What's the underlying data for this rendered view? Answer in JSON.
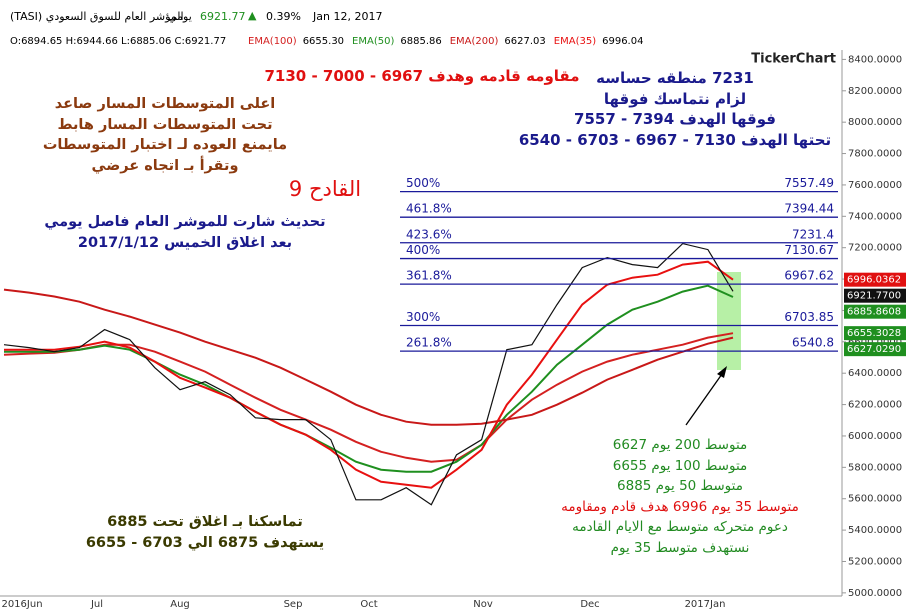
{
  "header": {
    "title": "المؤشر العام للسوق السعودي",
    "symbol": "(TASI)",
    "period": "يومي",
    "last": "6921.77",
    "change": "0.39%",
    "date": "Jan 12, 2017",
    "ohlc": "O:6894.65  H:6944.66  L:6885.06  C:6921.77",
    "legend_values": [
      "6655.30",
      "6885.86",
      "6627.03",
      "6996.04"
    ]
  },
  "logo": "TickerChart",
  "annotations": {
    "resistance": "مقاومه قادمه وهدف 6967 - 7000 - 7130",
    "zone": [
      "7231 منطقه حساسه",
      "لزام نتماسك فوقها",
      "فوقها الهدف 7394 - 7557",
      "تحتها الهدف 7130 - 6967 - 6703 - 6540"
    ],
    "trend": [
      "اعلى المتوسطات المسار صاعد",
      "تحت المتوسطات المسار هابط",
      "مايمنع العوده لـ اختبار المتوسطات",
      "وتقرأ بـ اتجاه عرضي"
    ],
    "episode": "القادح 9",
    "update": [
      "تحديث شارت للموشر العام فاصل يومي",
      "بعد اغلاق الخميس 2017/1/12"
    ],
    "hold": [
      "تماسكنا بـ اغلاق تحت 6885",
      "يستهدف 6875 الي 6703 - 6655"
    ],
    "averages": [
      "متوسط 200 يوم 6627",
      "متوسط 100 يوم 6655",
      "متوسط 50 يوم 6885",
      "متوسط 35 يوم 6996 هدف قادم ومقاومه",
      "دعوم متحركه متوسط مع الايام القادمه",
      "نستهدف متوسط 35 يوم"
    ]
  },
  "chart_data": {
    "type": "line",
    "x_labels": [
      "2016Jun",
      "Jul",
      "Aug",
      "Sep",
      "Oct",
      "Nov",
      "Dec",
      "2017Jan"
    ],
    "ylim": [
      4980,
      8460
    ],
    "yticks": [
      {
        "value": 8400,
        "label": "8400.0000"
      },
      {
        "value": 8200,
        "label": "8200.0000"
      },
      {
        "value": 8000,
        "label": "8000.0000"
      },
      {
        "value": 7800,
        "label": "7800.0000"
      },
      {
        "value": 7600,
        "label": "7600.0000"
      },
      {
        "value": 7400,
        "label": "7400.0000"
      },
      {
        "value": 7200,
        "label": "7200.0000"
      },
      {
        "value": 7000,
        "label": "7000.0000"
      },
      {
        "value": 6800,
        "label": "6800.0000"
      },
      {
        "value": 6600,
        "label": "6600.0000"
      },
      {
        "value": 6400,
        "label": "6400.0000"
      },
      {
        "value": 6200,
        "label": "6200.0000"
      },
      {
        "value": 6000,
        "label": "6000.0000"
      },
      {
        "value": 5800,
        "label": "5800.0000"
      },
      {
        "value": 5600,
        "label": "5600.0000"
      },
      {
        "value": 5400,
        "label": "5400.0000"
      },
      {
        "value": 5200,
        "label": "5200.0000"
      },
      {
        "value": 5000,
        "label": "5000.0000"
      }
    ],
    "series": [
      {
        "color": "#111111",
        "values": [
          6582,
          6563,
          6537,
          6563,
          6678,
          6614,
          6435,
          6295,
          6346,
          6263,
          6116,
          6104,
          6104,
          5976,
          5593,
          5593,
          5670,
          5562,
          5880,
          5976,
          6550,
          6582,
          6837,
          7073,
          7137,
          7092,
          7073,
          7226,
          7188,
          6921.77
        ]
      },
      {
        "name": "EMA(100)",
        "color": "#d42020",
        "values": [
          6518,
          6525,
          6531,
          6550,
          6582,
          6582,
          6537,
          6474,
          6410,
          6327,
          6244,
          6167,
          6104,
          6040,
          5963,
          5899,
          5861,
          5836,
          5848,
          5944,
          6104,
          6231,
          6327,
          6410,
          6474,
          6518,
          6550,
          6582,
          6627,
          6655.3
        ]
      },
      {
        "name": "EMA(50)",
        "color": "#1f8f1f",
        "values": [
          6537,
          6537,
          6537,
          6550,
          6576,
          6550,
          6474,
          6391,
          6327,
          6244,
          6154,
          6072,
          6008,
          5925,
          5836,
          5785,
          5772,
          5772,
          5836,
          5944,
          6135,
          6282,
          6454,
          6582,
          6710,
          6805,
          6856,
          6920,
          6958,
          6885.86
        ]
      },
      {
        "name": "EMA(200)",
        "color": "#c81818",
        "values": [
          6933,
          6914,
          6889,
          6856,
          6805,
          6761,
          6710,
          6659,
          6601,
          6550,
          6499,
          6435,
          6359,
          6282,
          6199,
          6135,
          6091,
          6072,
          6072,
          6078,
          6104,
          6135,
          6199,
          6276,
          6359,
          6422,
          6486,
          6537,
          6588,
          6627.03
        ]
      },
      {
        "name": "EMA(35)",
        "color": "#e81010",
        "values": [
          6550,
          6550,
          6550,
          6569,
          6601,
          6563,
          6474,
          6371,
          6308,
          6244,
          6154,
          6072,
          6008,
          5912,
          5785,
          5708,
          5689,
          5670,
          5785,
          5912,
          6199,
          6391,
          6614,
          6837,
          6965,
          7009,
          7028,
          7092,
          7111,
          6996.04
        ]
      }
    ],
    "fib_color": "#1a1a9a",
    "fib_levels": [
      {
        "label": "500%",
        "value": 7557.49
      },
      {
        "label": "461.8%",
        "value": 7394.44
      },
      {
        "label": "423.6%",
        "value": 7231.4
      },
      {
        "label": "400%",
        "value": 7130.67
      },
      {
        "label": "361.8%",
        "value": 6967.62
      },
      {
        "label": "300%",
        "value": 6703.85
      },
      {
        "label": "261.8%",
        "value": 6540.8
      }
    ],
    "price_tags": [
      {
        "value": 6996.0362,
        "label": "6996.0362",
        "color": "#e01010"
      },
      {
        "value": 6921.77,
        "label": "6921.7700",
        "color": "#111111"
      },
      {
        "value": 6885.8608,
        "label": "6885.8608",
        "color": "#1f8f1f"
      },
      {
        "value": 6655.3028,
        "label": "6655.3028",
        "color": "#1f8f1f"
      },
      {
        "value": 6627.029,
        "label": "6627.0290",
        "color": "#1f8f1f"
      }
    ]
  }
}
